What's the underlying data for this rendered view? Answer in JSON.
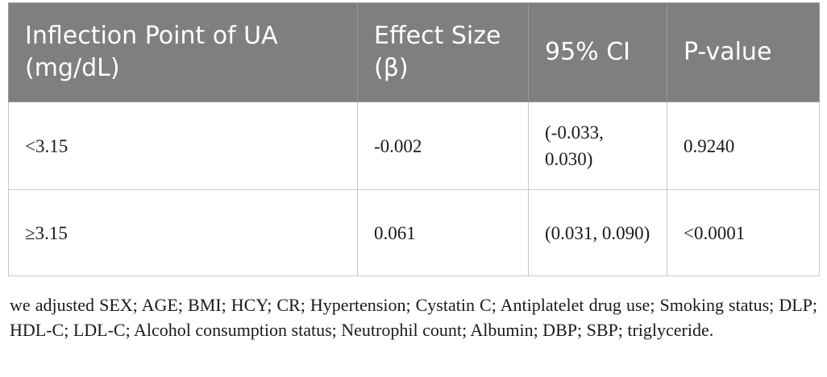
{
  "table": {
    "headers": [
      "Inflection Point of UA (mg/dL)",
      "Effect Size (β)",
      "95% CI",
      "P-value"
    ],
    "rows": [
      [
        "<3.15",
        "-0.002",
        "(-0.033, 0.030)",
        "0.9240"
      ],
      [
        "≥3.15",
        "0.061",
        "(0.031, 0.090)",
        "<0.0001"
      ]
    ]
  },
  "footnote": "we adjusted SEX; AGE; BMI; HCY; CR; Hypertension; Cystatin C; Antiplatelet drug use; Smoking status; DLP; HDL-C; LDL-C; Alcohol consumption status; Neutrophil count; Albumin; DBP; SBP; triglyceride."
}
